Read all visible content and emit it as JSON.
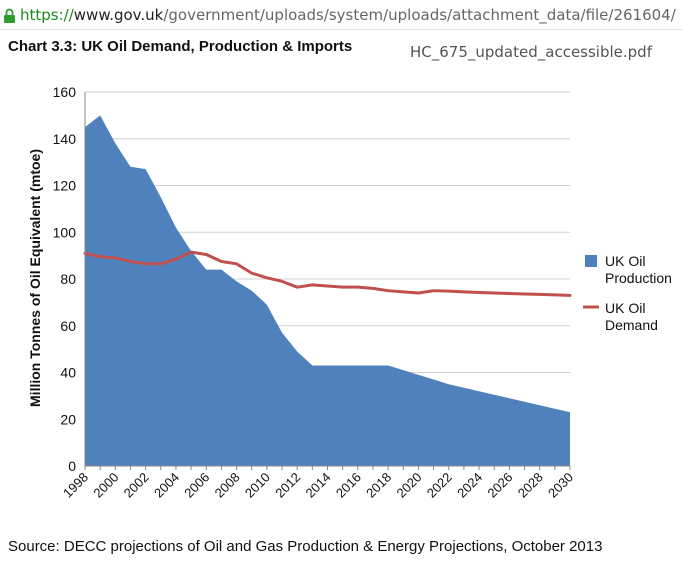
{
  "browser": {
    "url_scheme": "https://",
    "url_domain": "www.gov.uk",
    "url_path": "/government/uploads/system/uploads/attachment_data/file/261604/",
    "file_name": "HC_675_updated_accessible.pdf"
  },
  "colors": {
    "production": "#4f81bd",
    "demand": "#c0504d",
    "grid": "#d0d0d0",
    "url_scheme": "#1a8a1a"
  },
  "icons": {
    "lock": "lock-icon"
  },
  "source_note": "Source: DECC projections of Oil and Gas Production & Energy Projections, October 2013",
  "chart_data": {
    "type": "area",
    "title": "Chart 3.3: UK Oil Demand, Production & Imports",
    "xlabel": "",
    "ylabel": "Million Tonnes of Oil Equivalent (mtoe)",
    "ylim": [
      0,
      160
    ],
    "xlim": [
      1998,
      2030
    ],
    "grid": true,
    "legend_position": "right",
    "x_tick_labels": [
      "1998",
      "2000",
      "2002",
      "2004",
      "2006",
      "2008",
      "2010",
      "2012",
      "2014",
      "2016",
      "2018",
      "2020",
      "2022",
      "2024",
      "2026",
      "2028",
      "2030"
    ],
    "y_tick_labels": [
      "0",
      "20",
      "40",
      "60",
      "80",
      "100",
      "120",
      "140",
      "160"
    ],
    "x": [
      1998,
      1999,
      2000,
      2001,
      2002,
      2003,
      2004,
      2005,
      2006,
      2007,
      2008,
      2009,
      2010,
      2011,
      2012,
      2013,
      2014,
      2015,
      2016,
      2017,
      2018,
      2019,
      2020,
      2021,
      2022,
      2023,
      2024,
      2025,
      2026,
      2027,
      2028,
      2029,
      2030
    ],
    "series": [
      {
        "name": "UK Oil Production",
        "mark": "area",
        "values": [
          145,
          150,
          138,
          128,
          127,
          115,
          102,
          92,
          84,
          84,
          79,
          75,
          69,
          57,
          49,
          43,
          43,
          43,
          43,
          43,
          43,
          41,
          39,
          37,
          35,
          33.5,
          32,
          30.5,
          29,
          27.5,
          26,
          24.5,
          23
        ]
      },
      {
        "name": "UK Oil Demand",
        "mark": "line",
        "values": [
          91,
          89.5,
          89,
          87.5,
          86.5,
          86.5,
          88.5,
          91.5,
          90.5,
          87.5,
          86.5,
          82.5,
          80.5,
          79,
          76.5,
          77.5,
          77,
          76.5,
          76.5,
          76,
          75,
          74.5,
          74,
          75,
          74.8,
          74.5,
          74.2,
          74,
          73.8,
          73.6,
          73.4,
          73.2,
          73
        ]
      }
    ]
  }
}
